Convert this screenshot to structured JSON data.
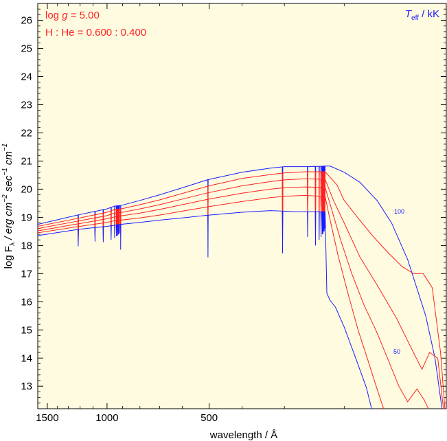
{
  "chart_data": {
    "type": "line",
    "xlabel": "wavelength / Å",
    "ylabel_parts": [
      "log F",
      "λ",
      " / erg cm",
      "−2",
      " sec",
      "−1",
      " cm",
      "−1"
    ],
    "x_ticks": [
      1500,
      1000,
      500
    ],
    "y_ticks": [
      13,
      14,
      15,
      16,
      17,
      18,
      19,
      20,
      21,
      22,
      23,
      24,
      25,
      26
    ],
    "xlim": [
      1600,
      100
    ],
    "ylim": [
      12.2,
      26.6
    ],
    "annotations": {
      "logg_prefix": "log ",
      "logg_symbol": "g",
      "logg_value": " = 5.00",
      "composition": "H : He = 0.600 : 0.400",
      "teff_symbol": "T",
      "teff_sub": "eff",
      "teff_unit": " / kK",
      "label_hot": "100",
      "label_cool": "50"
    },
    "colors": {
      "background": "#fefbe0",
      "hot_cool": "#1a1aff",
      "intermediate": "#ff2020"
    },
    "lines": [
      {
        "wavelength": 911.8,
        "depth": [
          0.35,
          0.4,
          0.45,
          0.5,
          0.55,
          0.9
        ]
      },
      {
        "wavelength": 504,
        "depth": [
          0.5,
          0.5,
          0.55,
          0.6,
          0.65,
          1.5
        ]
      },
      {
        "wavelength": 1215.7,
        "depth": 0.6
      },
      {
        "wavelength": 1025.7,
        "depth": 0.55
      },
      {
        "wavelength": 972.5,
        "depth": 0.5
      },
      {
        "wavelength": 949.7,
        "depth": 0.45
      },
      {
        "wavelength": 937.8,
        "depth": 0.4
      },
      {
        "wavelength": 930.7,
        "depth": 0.4
      },
      {
        "wavelength": 926.2,
        "depth": 0.35
      },
      {
        "wavelength": 923.1,
        "depth": 0.35
      },
      {
        "wavelength": 920.9,
        "depth": 0.3
      },
      {
        "wavelength": 919.3,
        "depth": 0.3
      },
      {
        "wavelength": 1085,
        "depth": 0.5
      },
      {
        "wavelength": 303.8,
        "depth": 1.5
      },
      {
        "wavelength": 256.3,
        "depth": 0.9
      },
      {
        "wavelength": 243,
        "depth": 1.2
      },
      {
        "wavelength": 237,
        "depth": 1.0
      },
      {
        "wavelength": 234,
        "depth": 0.9
      },
      {
        "wavelength": 232,
        "depth": 0.8
      },
      {
        "wavelength": 231,
        "depth": 0.8
      },
      {
        "wavelength": 230,
        "depth": 0.7
      },
      {
        "wavelength": 229,
        "depth": 0.7
      },
      {
        "wavelength": 228,
        "depth": 0.6
      },
      {
        "wavelength": 228,
        "depth": 0.6
      }
    ],
    "series": [
      {
        "name": "100",
        "color": "#1a1aff",
        "points": [
          [
            1600,
            18.75
          ],
          [
            1200,
            19.1
          ],
          [
            1000,
            19.3
          ],
          [
            950,
            19.4
          ],
          [
            911.8,
            19.42
          ],
          [
            800,
            19.6
          ],
          [
            700,
            19.8
          ],
          [
            600,
            20.05
          ],
          [
            500,
            20.35
          ],
          [
            400,
            20.6
          ],
          [
            330,
            20.75
          ],
          [
            300,
            20.8
          ],
          [
            260,
            20.8
          ],
          [
            228,
            20.82
          ],
          [
            220,
            20.82
          ],
          [
            200,
            20.6
          ],
          [
            180,
            20.25
          ],
          [
            160,
            19.6
          ],
          [
            145,
            18.8
          ],
          [
            130,
            17.5
          ],
          [
            115,
            15.5
          ],
          [
            108,
            14.0
          ],
          [
            103,
            12.2
          ]
        ]
      },
      {
        "name": "",
        "color": "#ff2020",
        "points": [
          [
            1600,
            18.68
          ],
          [
            1200,
            18.98
          ],
          [
            1000,
            19.18
          ],
          [
            950,
            19.28
          ],
          [
            911.8,
            19.3
          ],
          [
            800,
            19.45
          ],
          [
            700,
            19.62
          ],
          [
            600,
            19.85
          ],
          [
            500,
            20.12
          ],
          [
            400,
            20.38
          ],
          [
            330,
            20.52
          ],
          [
            300,
            20.58
          ],
          [
            260,
            20.62
          ],
          [
            228,
            20.62
          ],
          [
            210,
            20.15
          ],
          [
            200,
            19.6
          ],
          [
            180,
            18.9
          ],
          [
            165,
            18.35
          ],
          [
            150,
            17.8
          ],
          [
            135,
            17.25
          ],
          [
            125,
            17.0
          ],
          [
            117,
            17.0
          ],
          [
            110,
            16.5
          ],
          [
            104,
            14.2
          ],
          [
            101,
            12.2
          ]
        ]
      },
      {
        "name": "",
        "color": "#ff2020",
        "points": [
          [
            1600,
            18.6
          ],
          [
            1200,
            18.88
          ],
          [
            1000,
            19.06
          ],
          [
            950,
            19.15
          ],
          [
            911.8,
            19.17
          ],
          [
            800,
            19.3
          ],
          [
            700,
            19.45
          ],
          [
            600,
            19.65
          ],
          [
            500,
            19.88
          ],
          [
            400,
            20.12
          ],
          [
            330,
            20.27
          ],
          [
            300,
            20.33
          ],
          [
            260,
            20.37
          ],
          [
            228,
            20.35
          ],
          [
            215,
            19.6
          ],
          [
            200,
            18.8
          ],
          [
            180,
            17.6
          ],
          [
            160,
            16.6
          ],
          [
            140,
            15.4
          ],
          [
            125,
            14.2
          ],
          [
            118,
            13.6
          ],
          [
            112,
            14.2
          ],
          [
            106,
            14.0
          ],
          [
            102,
            12.2
          ]
        ]
      },
      {
        "name": "",
        "color": "#ff2020",
        "points": [
          [
            1600,
            18.52
          ],
          [
            1200,
            18.78
          ],
          [
            1000,
            18.95
          ],
          [
            950,
            19.02
          ],
          [
            911.8,
            19.05
          ],
          [
            800,
            19.15
          ],
          [
            700,
            19.28
          ],
          [
            600,
            19.45
          ],
          [
            500,
            19.65
          ],
          [
            400,
            19.86
          ],
          [
            330,
            20.0
          ],
          [
            300,
            20.05
          ],
          [
            260,
            20.08
          ],
          [
            228,
            20.06
          ],
          [
            218,
            19.3
          ],
          [
            205,
            18.2
          ],
          [
            190,
            17.0
          ],
          [
            175,
            15.9
          ],
          [
            160,
            14.9
          ],
          [
            148,
            13.9
          ],
          [
            138,
            13.0
          ],
          [
            130,
            12.45
          ],
          [
            122,
            12.9
          ],
          [
            116,
            12.5
          ],
          [
            113,
            12.2
          ]
        ]
      },
      {
        "name": "",
        "color": "#ff2020",
        "points": [
          [
            1600,
            18.45
          ],
          [
            1200,
            18.68
          ],
          [
            1000,
            18.82
          ],
          [
            950,
            18.88
          ],
          [
            911.8,
            18.9
          ],
          [
            800,
            18.98
          ],
          [
            700,
            19.08
          ],
          [
            600,
            19.22
          ],
          [
            500,
            19.38
          ],
          [
            400,
            19.56
          ],
          [
            330,
            19.7
          ],
          [
            300,
            19.75
          ],
          [
            260,
            19.78
          ],
          [
            228,
            19.74
          ],
          [
            220,
            18.9
          ],
          [
            208,
            17.6
          ],
          [
            195,
            16.3
          ],
          [
            182,
            15.0
          ],
          [
            170,
            13.9
          ],
          [
            160,
            12.9
          ],
          [
            153,
            12.2
          ]
        ]
      },
      {
        "name": "50",
        "color": "#1a1aff",
        "points": [
          [
            1600,
            18.35
          ],
          [
            1200,
            18.58
          ],
          [
            1000,
            18.68
          ],
          [
            950,
            18.72
          ],
          [
            911.8,
            18.75
          ],
          [
            800,
            18.82
          ],
          [
            700,
            18.9
          ],
          [
            600,
            18.98
          ],
          [
            500,
            19.08
          ],
          [
            400,
            19.18
          ],
          [
            330,
            19.24
          ],
          [
            300,
            19.22
          ],
          [
            280,
            19.2
          ],
          [
            228,
            19.2
          ],
          [
            225,
            16.3
          ],
          [
            220,
            16.05
          ],
          [
            212,
            15.8
          ],
          [
            200,
            15.1
          ],
          [
            185,
            14.0
          ],
          [
            172,
            12.95
          ],
          [
            166,
            12.2
          ]
        ]
      }
    ]
  }
}
